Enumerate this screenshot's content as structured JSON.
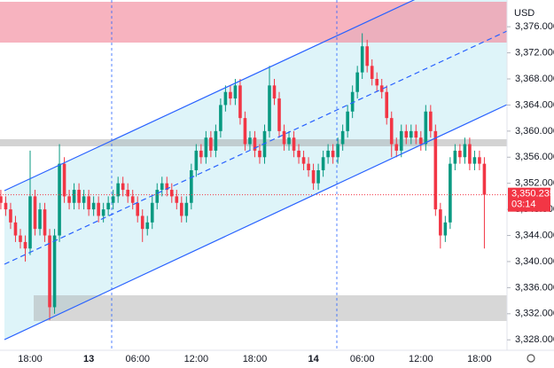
{
  "chart_data": {
    "type": "candlestick",
    "currency": "USD",
    "categories": [
      null,
      null,
      null,
      null,
      null,
      null,
      "18:00",
      null,
      null,
      null,
      null,
      null,
      null,
      null,
      null,
      null,
      null,
      null,
      "13",
      null,
      null,
      null,
      null,
      null,
      null,
      null,
      null,
      null,
      "06:00",
      null,
      null,
      null,
      null,
      null,
      null,
      null,
      null,
      null,
      null,
      null,
      "12:00",
      null,
      null,
      null,
      null,
      null,
      null,
      null,
      null,
      null,
      null,
      null,
      "18:00",
      null,
      null,
      null,
      null,
      null,
      null,
      null,
      null,
      null,
      null,
      null,
      "14",
      null,
      null,
      null,
      null,
      null,
      null,
      null,
      null,
      null,
      "06:00",
      null,
      null,
      null,
      null,
      null,
      null,
      null,
      null,
      null,
      null,
      null,
      "12:00",
      null,
      null,
      null,
      null,
      null,
      null,
      null,
      null,
      null,
      null,
      null,
      "18:00",
      null
    ],
    "open": [
      3350,
      3349,
      3348,
      3346,
      3344,
      3343,
      3342,
      3350,
      3345,
      3348,
      3344,
      3333,
      3344,
      3355,
      3350,
      3349,
      3351,
      3349,
      3350,
      3348,
      3349,
      3347,
      3348,
      3349,
      3350,
      3352,
      3351,
      3350,
      3349,
      3347,
      3345,
      3346,
      3349,
      3351,
      3352,
      3351,
      3350,
      3349,
      3347,
      3349,
      3354,
      3357,
      3356,
      3359,
      3357,
      3360,
      3364,
      3366,
      3365,
      3367,
      3362,
      3358,
      3359,
      3357,
      3356,
      3360,
      3367,
      3365,
      3360,
      3358,
      3359,
      3357,
      3356,
      3355,
      3354,
      3352,
      3354,
      3356,
      3357,
      3356,
      3358,
      3360,
      3363,
      3366,
      3369,
      3373,
      3370,
      3368,
      3367,
      3366,
      3362,
      3358,
      3357,
      3360,
      3359,
      3360,
      3359,
      3358,
      3363,
      3360,
      3348,
      3344,
      3346,
      3355,
      3357,
      3356,
      3358,
      3355,
      3356,
      3355
    ],
    "high": [
      3351,
      3350,
      3349,
      3347,
      3345,
      3344,
      3357,
      3351,
      3349,
      3349,
      3345,
      3345,
      3358,
      3356,
      3351,
      3352,
      3352,
      3351,
      3351,
      3350,
      3350,
      3349,
      3350,
      3351,
      3353,
      3353,
      3352,
      3351,
      3350,
      3348,
      3347,
      3350,
      3352,
      3353,
      3353,
      3352,
      3351,
      3350,
      3350,
      3355,
      3358,
      3358,
      3360,
      3360,
      3361,
      3365,
      3367,
      3367,
      3368,
      3368,
      3363,
      3360,
      3360,
      3358,
      3361,
      3370,
      3368,
      3366,
      3361,
      3360,
      3360,
      3358,
      3357,
      3356,
      3355,
      3355,
      3357,
      3358,
      3358,
      3359,
      3361,
      3364,
      3367,
      3370,
      3375,
      3374,
      3371,
      3369,
      3368,
      3367,
      3363,
      3359,
      3361,
      3361,
      3361,
      3361,
      3360,
      3364,
      3364,
      3361,
      3349,
      3347,
      3356,
      3358,
      3358,
      3359,
      3359,
      3357,
      3357,
      3356
    ],
    "low": [
      3348,
      3347,
      3345,
      3343,
      3342,
      3340,
      3341,
      3344,
      3344,
      3343,
      3331,
      3332,
      3343,
      3349,
      3348,
      3348,
      3348,
      3348,
      3347,
      3347,
      3346,
      3346,
      3347,
      3348,
      3349,
      3350,
      3349,
      3348,
      3346,
      3343,
      3344,
      3345,
      3348,
      3350,
      3350,
      3349,
      3348,
      3346,
      3346,
      3348,
      3353,
      3355,
      3355,
      3356,
      3356,
      3359,
      3363,
      3364,
      3364,
      3361,
      3357,
      3357,
      3356,
      3355,
      3355,
      3359,
      3364,
      3359,
      3357,
      3357,
      3356,
      3355,
      3354,
      3353,
      3351,
      3351,
      3353,
      3355,
      3355,
      3355,
      3357,
      3359,
      3362,
      3365,
      3368,
      3369,
      3367,
      3366,
      3365,
      3361,
      3356,
      3356,
      3356,
      3358,
      3358,
      3358,
      3357,
      3357,
      3359,
      3347,
      3342,
      3343,
      3345,
      3354,
      3355,
      3355,
      3354,
      3354,
      3354,
      3342
    ],
    "close": [
      3349,
      3348,
      3346,
      3344,
      3343,
      3342,
      3350,
      3345,
      3348,
      3344,
      3333,
      3344,
      3355,
      3350,
      3349,
      3351,
      3349,
      3350,
      3348,
      3349,
      3347,
      3348,
      3349,
      3350,
      3352,
      3351,
      3350,
      3349,
      3347,
      3345,
      3346,
      3349,
      3351,
      3352,
      3351,
      3350,
      3349,
      3347,
      3349,
      3354,
      3357,
      3356,
      3359,
      3357,
      3360,
      3364,
      3366,
      3365,
      3367,
      3362,
      3358,
      3359,
      3357,
      3356,
      3360,
      3367,
      3365,
      3360,
      3358,
      3359,
      3357,
      3356,
      3355,
      3354,
      3352,
      3354,
      3356,
      3357,
      3356,
      3358,
      3360,
      3363,
      3366,
      3369,
      3373,
      3370,
      3368,
      3367,
      3366,
      3362,
      3358,
      3357,
      3360,
      3359,
      3360,
      3359,
      3358,
      3363,
      3360,
      3348,
      3344,
      3346,
      3355,
      3357,
      3356,
      3358,
      3355,
      3356,
      3355,
      3350.235
    ],
    "up_color": "#089981",
    "down_color": "#f23645",
    "ylim": [
      3326.4,
      3380.1
    ],
    "yticks": [
      {
        "value": 3328,
        "label": "3,328.000"
      },
      {
        "value": 3332,
        "label": "3,332.000"
      },
      {
        "value": 3336,
        "label": "3,336.000"
      },
      {
        "value": 3340,
        "label": "3,340.000"
      },
      {
        "value": 3344,
        "label": "3,344.000"
      },
      {
        "value": 3348,
        "label": "3,348.000"
      },
      {
        "value": 3352,
        "label": "3,352.000"
      },
      {
        "value": 3356,
        "label": "3,356.000"
      },
      {
        "value": 3360,
        "label": "3,360.000"
      },
      {
        "value": 3364,
        "label": "3,364.000"
      },
      {
        "value": 3368,
        "label": "3,368.000"
      },
      {
        "value": 3372,
        "label": "3,372.000"
      },
      {
        "value": 3376,
        "label": "3,376.000"
      }
    ],
    "last_price_label": "3,350.235",
    "countdown": "03:14"
  }
}
